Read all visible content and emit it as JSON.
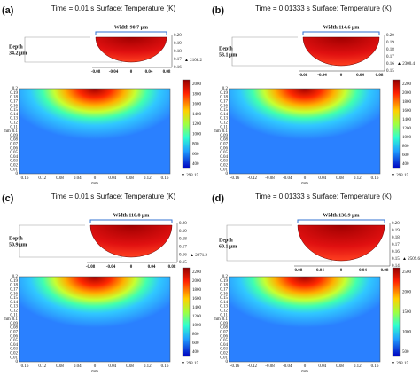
{
  "axis_unit": "mm",
  "y_ticks": [
    "0.2",
    "0.19",
    "0.18",
    "0.17",
    "0.16",
    "0.15",
    "0.14",
    "0.13",
    "0.12",
    "0.11",
    "0.1",
    "0.09",
    "0.08",
    "0.07",
    "0.06",
    "0.05",
    "0.04",
    "0.03",
    "0.02",
    "0.01",
    "0"
  ],
  "panels": [
    {
      "label": "(a)",
      "title": "Time = 0.01 s   Surface: Temperature (K)",
      "width": "Width 90.7 μm",
      "depth": [
        "Depth",
        "34.2 μm"
      ],
      "max": "▲ 2108.2",
      "min": "▼ 293.15",
      "colorbar_ticks": [
        "2000",
        "1800",
        "1600",
        "1400",
        "1200",
        "1000",
        "800",
        "600",
        "400"
      ],
      "inset_y_ticks": [
        "0.20",
        "0.19",
        "0.18",
        "0.17",
        "0.16"
      ],
      "inset_x_ticks": [
        "-0.08",
        "-0.04",
        "0",
        "0.04",
        "0.08"
      ],
      "x_ticks": [
        "0.16",
        "0.12",
        "0.08",
        "0.04",
        "0",
        "0.04",
        "0.08",
        "0.12",
        "0.16"
      ]
    },
    {
      "label": "(b)",
      "title": "Time = 0.01333 s   Surface: Temperature (K)",
      "width": "Width 114.6 μm",
      "depth": [
        "Depth",
        "53.1 μm"
      ],
      "max": "▲ 2300.4",
      "min": "▼ 293.15",
      "colorbar_ticks": [
        "2200",
        "2000",
        "1800",
        "1600",
        "1400",
        "1200",
        "1000",
        "800",
        "600",
        "400"
      ],
      "inset_y_ticks": [
        "0.20",
        "0.19",
        "0.18",
        "0.17",
        "0.16",
        "0.15"
      ],
      "inset_x_ticks": [
        "-0.08",
        "-0.04",
        "0",
        "0.04",
        "0.08"
      ],
      "x_ticks": [
        "-0.16",
        "-0.12",
        "-0.08",
        "-0.04",
        "0",
        "0.04",
        "0.08",
        "0.12",
        "0.16"
      ]
    },
    {
      "label": "(c)",
      "title": "Time = 0.01 s   Surface: Temperature (K)",
      "width": "Width 110.8 μm",
      "depth": [
        "Depth",
        "50.9 μm"
      ],
      "max": "▲ 2271.2",
      "min": "▼ 293.15",
      "colorbar_ticks": [
        "2200",
        "2000",
        "1800",
        "1600",
        "1400",
        "1200",
        "1000",
        "800",
        "600",
        "400"
      ],
      "inset_y_ticks": [
        "0.20",
        "0.19",
        "0.18",
        "0.17",
        "0.16",
        "0.15"
      ],
      "inset_x_ticks": [
        "-0.08",
        "-0.04",
        "0",
        "0.04",
        "0.08"
      ],
      "x_ticks": [
        "0.16",
        "0.12",
        "0.08",
        "0.04",
        "0",
        "0.04",
        "0.08",
        "0.12",
        "0.16"
      ]
    },
    {
      "label": "(d)",
      "title": "Time = 0.01333 s   Surface: Temperature (K)",
      "width": "Width 130.9 μm",
      "depth": [
        "Depth",
        "60.1 μm"
      ],
      "max": "▲ 2509.6",
      "min": "▼ 293.15",
      "colorbar_ticks": [
        "2500",
        "2000",
        "1500",
        "1000",
        "500"
      ],
      "inset_y_ticks": [
        "0.20",
        "0.19",
        "0.18",
        "0.17",
        "0.16",
        "0.15",
        "0.14"
      ],
      "inset_x_ticks": [
        "-0.08",
        "-0.04",
        "0",
        "0.04",
        "0.08"
      ],
      "x_ticks": [
        "-0.16",
        "-0.12",
        "-0.08",
        "-0.04",
        "0",
        "0.04",
        "0.08",
        "0.12",
        "0.16"
      ]
    }
  ]
}
